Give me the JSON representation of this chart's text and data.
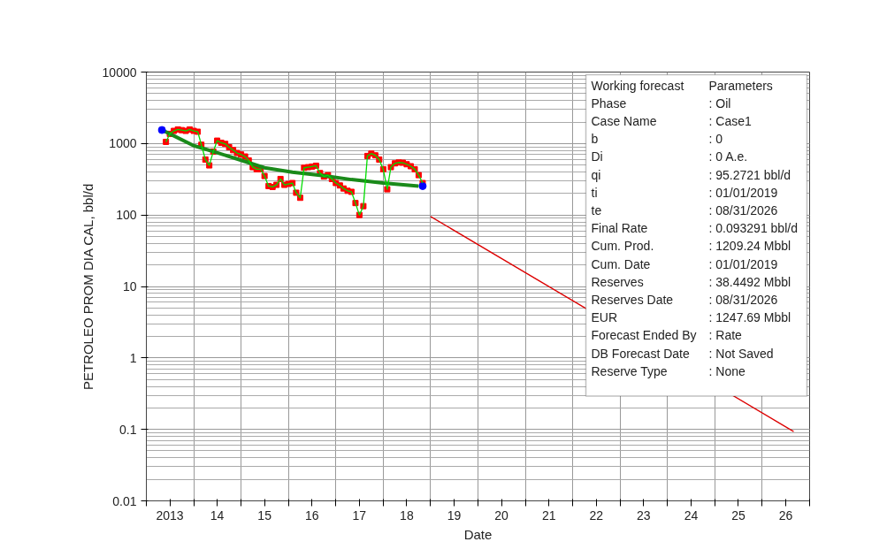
{
  "chart_data": {
    "type": "line",
    "xlabel": "Date",
    "ylabel": "PETROLEO PROM DIA CAL, bbl/d",
    "log": "y",
    "grid": true,
    "xlim": [
      "2013-01-01",
      "2027-01-01"
    ],
    "xticks": [
      {
        "value": "2013-01-01",
        "label": null
      },
      {
        "value": "2013-07-01",
        "label": "2013"
      },
      {
        "value": "2014-01-01",
        "label": null
      },
      {
        "value": "2014-07-01",
        "label": "14"
      },
      {
        "value": "2015-01-01",
        "label": null
      },
      {
        "value": "2015-07-01",
        "label": "15"
      },
      {
        "value": "2016-01-01",
        "label": null
      },
      {
        "value": "2016-07-01",
        "label": "16"
      },
      {
        "value": "2017-01-01",
        "label": null
      },
      {
        "value": "2017-07-01",
        "label": "17"
      },
      {
        "value": "2018-01-01",
        "label": null
      },
      {
        "value": "2018-07-01",
        "label": "18"
      },
      {
        "value": "2019-01-01",
        "label": null
      },
      {
        "value": "2019-07-01",
        "label": "19"
      },
      {
        "value": "2020-01-01",
        "label": null
      },
      {
        "value": "2020-07-01",
        "label": "20"
      },
      {
        "value": "2021-01-01",
        "label": null
      },
      {
        "value": "2021-07-01",
        "label": "21"
      },
      {
        "value": "2022-01-01",
        "label": null
      },
      {
        "value": "2022-07-01",
        "label": "22"
      },
      {
        "value": "2023-01-01",
        "label": null
      },
      {
        "value": "2023-07-01",
        "label": "23"
      },
      {
        "value": "2024-01-01",
        "label": null
      },
      {
        "value": "2024-07-01",
        "label": "24"
      },
      {
        "value": "2025-01-01",
        "label": null
      },
      {
        "value": "2025-07-01",
        "label": "25"
      },
      {
        "value": "2026-01-01",
        "label": null
      },
      {
        "value": "2026-07-01",
        "label": "26"
      },
      {
        "value": "2027-01-01",
        "label": null
      }
    ],
    "ylim": [
      0.01,
      10000
    ],
    "yticks": [
      0.01,
      0.1,
      1,
      10,
      100,
      1000,
      10000
    ],
    "x": [
      "2013-06",
      "2013-07",
      "2013-08",
      "2013-09",
      "2013-10",
      "2013-11",
      "2013-12",
      "2014-01",
      "2014-02",
      "2014-03",
      "2014-04",
      "2014-05",
      "2014-06",
      "2014-07",
      "2014-08",
      "2014-09",
      "2014-10",
      "2014-11",
      "2014-12",
      "2015-01",
      "2015-02",
      "2015-03",
      "2015-04",
      "2015-05",
      "2015-06",
      "2015-07",
      "2015-08",
      "2015-09",
      "2015-10",
      "2015-11",
      "2015-12",
      "2016-01",
      "2016-02",
      "2016-03",
      "2016-04",
      "2016-05",
      "2016-06",
      "2016-07",
      "2016-08",
      "2016-09",
      "2016-10",
      "2016-11",
      "2016-12",
      "2017-01",
      "2017-02",
      "2017-03",
      "2017-04",
      "2017-05",
      "2017-06",
      "2017-07",
      "2017-08",
      "2017-09",
      "2017-10",
      "2017-11",
      "2017-12",
      "2018-01",
      "2018-02",
      "2018-03",
      "2018-04",
      "2018-05",
      "2018-06",
      "2018-07",
      "2018-08",
      "2018-09",
      "2018-10",
      "2018-11"
    ],
    "series": [
      {
        "color": "#00dd00",
        "marker": "none",
        "values": [
          1055,
          1365,
          1503,
          1574,
          1540,
          1503,
          1574,
          1503,
          1462,
          961,
          597,
          494,
          772,
          1097,
          1025,
          988,
          889,
          809,
          737,
          703,
          658,
          581,
          467,
          437,
          437,
          351,
          254,
          247,
          264,
          319,
          264,
          272,
          280,
          205,
          174,
          458,
          467,
          475,
          489,
          386,
          345,
          361,
          319,
          280,
          259,
          235,
          218,
          211,
          147,
          100,
          133,
          670,
          723,
          683,
          597,
          437,
          229,
          467,
          528,
          543,
          539,
          513,
          481,
          437,
          361,
          280
        ]
      },
      {
        "type": "scatter",
        "color": "#ff0000",
        "marker": "square",
        "values": [
          1055,
          1365,
          1503,
          1574,
          1540,
          1503,
          1574,
          1503,
          1462,
          961,
          597,
          494,
          772,
          1097,
          1025,
          988,
          889,
          809,
          737,
          703,
          658,
          581,
          467,
          437,
          437,
          351,
          254,
          247,
          264,
          319,
          264,
          272,
          280,
          205,
          174,
          458,
          467,
          475,
          489,
          386,
          345,
          361,
          319,
          280,
          259,
          235,
          218,
          211,
          147,
          100,
          133,
          670,
          723,
          683,
          597,
          437,
          229,
          467,
          528,
          543,
          539,
          513,
          481,
          437,
          361,
          280
        ]
      },
      {
        "color": "#1a8a1a",
        "marker": "none",
        "x": [
          "2013-05",
          "2013-07",
          "2014-01",
          "2014-06",
          "2014-12",
          "2015-07",
          "2016-02",
          "2016-10",
          "2017-05",
          "2018-01",
          "2018-10"
        ],
        "values": [
          1545,
          1365,
          933,
          772,
          609,
          458,
          397,
          354,
          313,
          280,
          254
        ]
      },
      {
        "type": "scatter",
        "color": "#0000ff",
        "marker": "circle",
        "x": [
          "2013-05",
          "2018-11"
        ],
        "values": [
          1545,
          254
        ]
      },
      {
        "color": "#dd0000",
        "marker": "none",
        "x": [
          "2019-01-01",
          "2026-08-31"
        ],
        "values": [
          95.2721,
          0.093291
        ]
      }
    ],
    "annotations": [
      "Working forecast",
      "Parameters",
      "Phase",
      ": Oil",
      "Case Name",
      ": Case1",
      "b",
      ": 0",
      "Di",
      ": 0 A.e.",
      "qi",
      ": 95.2721 bbl/d",
      "ti",
      ": 01/01/2019",
      "te",
      ": 08/31/2026",
      "Final Rate",
      ": 0.093291 bbl/d",
      "Cum. Prod.",
      ": 1209.24 Mbbl",
      "Cum. Date",
      ": 01/01/2019",
      "Reserves",
      ": 38.4492 Mbbl",
      "Reserves Date",
      ": 08/31/2026",
      "EUR",
      ": 1247.69 Mbbl",
      "Forecast Ended By",
      ": Rate",
      "DB Forecast Date",
      ": Not Saved",
      "Reserve Type",
      ": None"
    ]
  }
}
